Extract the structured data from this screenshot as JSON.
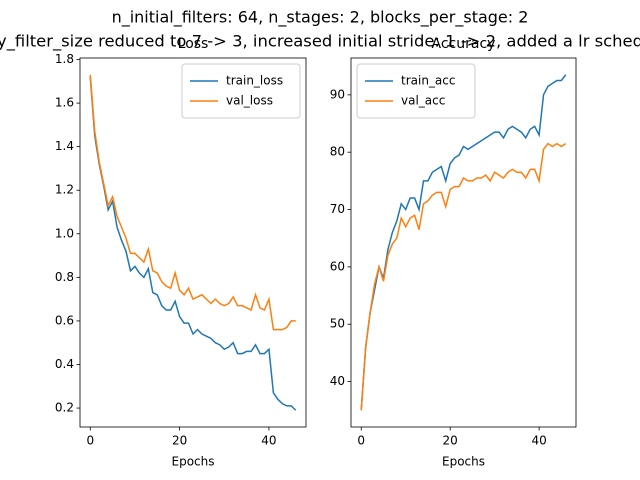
{
  "suptitle": [
    "n_initial_filters: 64, n_stages: 2, blocks_per_stage: 2",
    "y_filter_size reduced to 7 -> 3, increased initial stride: 1 -> 2, added a lr sched"
  ],
  "chart_data": [
    {
      "type": "line",
      "title": "Loss",
      "xlabel": "Epochs",
      "x": [
        0,
        1,
        2,
        3,
        4,
        5,
        6,
        7,
        8,
        9,
        10,
        11,
        12,
        13,
        14,
        15,
        16,
        17,
        18,
        19,
        20,
        21,
        22,
        23,
        24,
        25,
        26,
        27,
        28,
        29,
        30,
        31,
        32,
        33,
        34,
        35,
        36,
        37,
        38,
        39,
        40,
        41,
        42,
        43,
        44,
        45,
        46
      ],
      "series": [
        {
          "name": "train_loss",
          "color": "#1f77b4",
          "values": [
            1.72,
            1.45,
            1.32,
            1.22,
            1.11,
            1.15,
            1.03,
            0.97,
            0.92,
            0.83,
            0.85,
            0.82,
            0.8,
            0.84,
            0.73,
            0.72,
            0.67,
            0.65,
            0.65,
            0.69,
            0.62,
            0.59,
            0.59,
            0.54,
            0.56,
            0.54,
            0.53,
            0.52,
            0.5,
            0.49,
            0.47,
            0.48,
            0.5,
            0.45,
            0.45,
            0.46,
            0.46,
            0.49,
            0.45,
            0.45,
            0.47,
            0.27,
            0.24,
            0.22,
            0.21,
            0.21,
            0.19
          ]
        },
        {
          "name": "val_loss",
          "color": "#ff7f0e",
          "values": [
            1.73,
            1.47,
            1.33,
            1.23,
            1.13,
            1.17,
            1.08,
            1.03,
            0.98,
            0.91,
            0.91,
            0.89,
            0.87,
            0.93,
            0.83,
            0.82,
            0.78,
            0.76,
            0.75,
            0.82,
            0.74,
            0.72,
            0.75,
            0.7,
            0.71,
            0.72,
            0.7,
            0.68,
            0.7,
            0.68,
            0.67,
            0.68,
            0.71,
            0.67,
            0.67,
            0.66,
            0.65,
            0.72,
            0.66,
            0.65,
            0.7,
            0.56,
            0.56,
            0.56,
            0.57,
            0.6,
            0.6
          ]
        }
      ],
      "xlim": [
        -2.3,
        48.3
      ],
      "xticks": [
        0,
        20,
        40
      ],
      "ylim": [
        0.113,
        1.807
      ],
      "yticks": [
        0.2,
        0.4,
        0.6,
        0.8,
        {
          "value": 1,
          "label": "1.0"
        },
        1.2,
        1.4,
        1.6,
        1.8
      ],
      "legend": "upper right"
    },
    {
      "type": "line",
      "title": "Accuracy",
      "xlabel": "Epochs",
      "x": [
        0,
        1,
        2,
        3,
        4,
        5,
        6,
        7,
        8,
        9,
        10,
        11,
        12,
        13,
        14,
        15,
        16,
        17,
        18,
        19,
        20,
        21,
        22,
        23,
        24,
        25,
        26,
        27,
        28,
        29,
        30,
        31,
        32,
        33,
        34,
        35,
        36,
        37,
        38,
        39,
        40,
        41,
        42,
        43,
        44,
        45,
        46
      ],
      "series": [
        {
          "name": "train_acc",
          "color": "#1f77b4",
          "values": [
            35,
            46,
            52,
            56,
            60,
            58,
            63,
            66,
            68,
            71,
            70,
            72,
            72,
            70,
            75,
            75,
            76.5,
            77,
            77.5,
            75,
            78,
            79,
            79.5,
            81,
            80.5,
            81,
            81.5,
            82,
            82.5,
            83,
            83.5,
            83.5,
            82.5,
            84,
            84.5,
            84,
            83.5,
            82.5,
            84,
            84.5,
            83,
            90,
            91.5,
            92,
            92.5,
            92.5,
            93.5
          ]
        },
        {
          "name": "val_acc",
          "color": "#ff7f0e",
          "values": [
            35,
            46,
            52,
            57,
            60,
            57.5,
            62,
            64,
            65,
            68.5,
            67,
            68.5,
            69,
            66.5,
            71,
            71.5,
            72.5,
            73,
            73,
            70.5,
            73.5,
            74,
            74,
            75.5,
            75,
            75,
            75.5,
            75.5,
            76,
            75,
            76.5,
            76,
            75.5,
            76.5,
            77,
            76.5,
            76.5,
            75.5,
            77,
            77,
            75,
            80.5,
            81.5,
            81,
            81.5,
            81,
            81.5
          ]
        }
      ],
      "xlim": [
        -2.3,
        48.3
      ],
      "xticks": [
        0,
        20,
        40
      ],
      "ylim": [
        32.075,
        96.425
      ],
      "yticks": [
        40,
        50,
        60,
        70,
        80,
        90
      ],
      "legend": "upper left"
    }
  ]
}
